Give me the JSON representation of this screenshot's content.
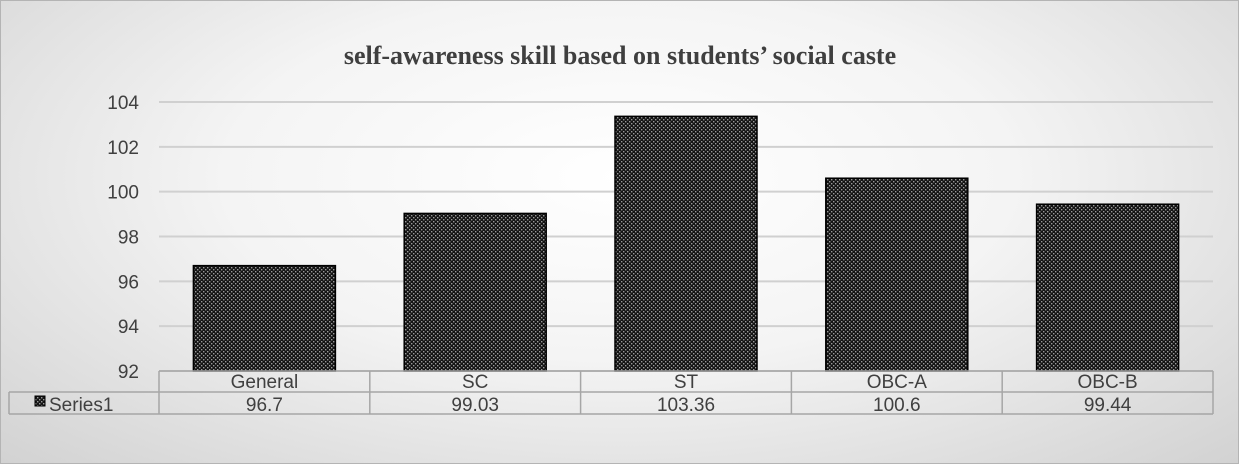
{
  "chart_data": {
    "type": "bar",
    "title": "self-awareness skill based on students’ social caste",
    "categories": [
      "General",
      "SC",
      "ST",
      "OBC-A",
      "OBC-B"
    ],
    "series": [
      {
        "name": "Series1",
        "values": [
          96.7,
          99.03,
          103.36,
          100.6,
          99.44
        ]
      }
    ],
    "y_ticks": [
      "92",
      "94",
      "96",
      "98",
      "100",
      "102",
      "104"
    ],
    "data_table": {
      "row_label": "Series1",
      "cells": [
        "96.7",
        "99.03",
        "103.36",
        "100.6",
        "99.44"
      ]
    },
    "ylim": [
      92,
      104
    ],
    "y_step": 2,
    "grid": true,
    "legend": "data-table"
  },
  "colors": {
    "bar_fill": "#141414",
    "bar_dot": "#9a9a9a",
    "grid": "#d0d0d0",
    "table_border": "#a6a6a6",
    "text": "#404040"
  }
}
